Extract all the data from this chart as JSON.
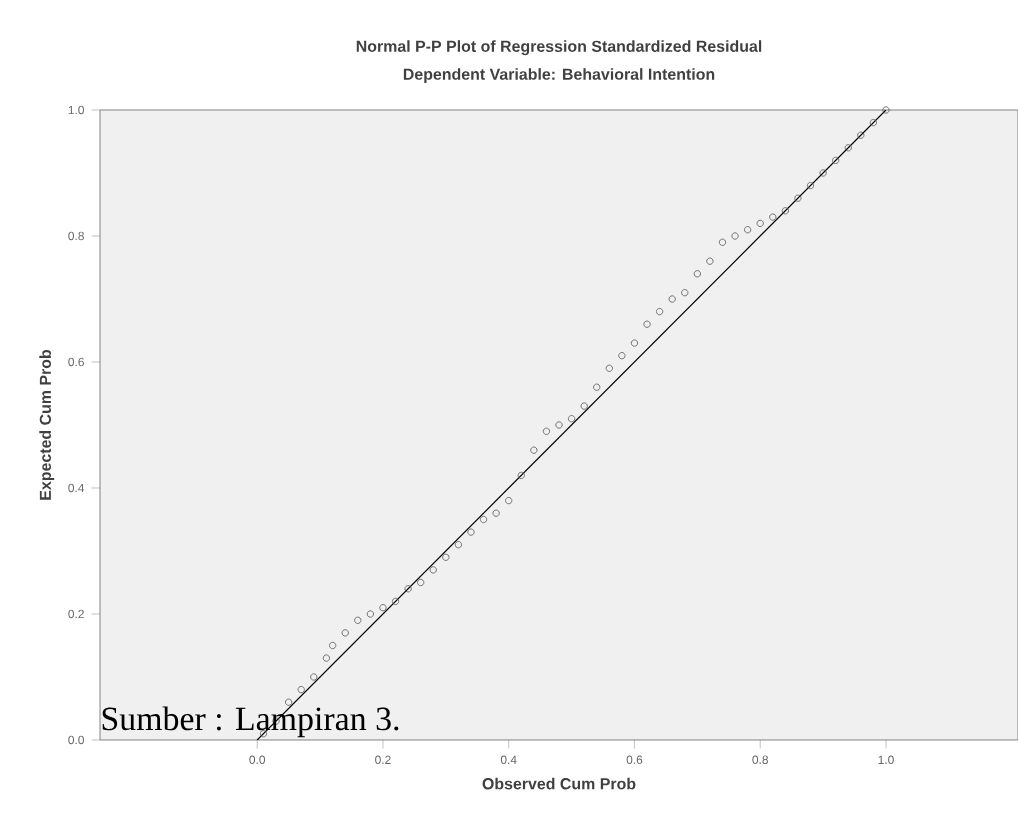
{
  "chart_data": {
    "type": "scatter",
    "title": "Normal P-P Plot of Regression Standardized Residual",
    "subtitle": "Dependent Variable: Behavioral Intention",
    "xlabel": "Observed Cum Prob",
    "ylabel": "Expected Cum Prob",
    "xlim": [
      -0.25,
      1.21
    ],
    "ylim": [
      0,
      1.0
    ],
    "xticks": [
      {
        "value": 0,
        "label": "0.0"
      },
      {
        "value": 0.2,
        "label": "0.2"
      },
      {
        "value": 0.4,
        "label": "0.4"
      },
      {
        "value": 0.6,
        "label": "0.6"
      },
      {
        "value": 0.8,
        "label": "0.8"
      },
      {
        "value": 1.0,
        "label": "1.0"
      }
    ],
    "yticks": [
      {
        "value": 0,
        "label": "0.0"
      },
      {
        "value": 0.2,
        "label": "0.2"
      },
      {
        "value": 0.4,
        "label": "0.4"
      },
      {
        "value": 0.6,
        "label": "0.6"
      },
      {
        "value": 0.8,
        "label": "0.8"
      },
      {
        "value": 1.0,
        "label": "1.0"
      }
    ],
    "series": [
      {
        "marker": "circle",
        "color": "#555555",
        "x": [
          0.01,
          0.03,
          0.05,
          0.07,
          0.09,
          0.11,
          0.12,
          0.14,
          0.16,
          0.18,
          0.2,
          0.22,
          0.24,
          0.26,
          0.28,
          0.3,
          0.32,
          0.34,
          0.36,
          0.38,
          0.4,
          0.42,
          0.44,
          0.46,
          0.48,
          0.5,
          0.52,
          0.54,
          0.56,
          0.58,
          0.6,
          0.62,
          0.64,
          0.66,
          0.68,
          0.7,
          0.72,
          0.74,
          0.76,
          0.78,
          0.8,
          0.82,
          0.84,
          0.86,
          0.88,
          0.9,
          0.92,
          0.94,
          0.96,
          0.98,
          1.0
        ],
        "values": [
          0.01,
          0.03,
          0.06,
          0.08,
          0.1,
          0.13,
          0.15,
          0.17,
          0.19,
          0.2,
          0.21,
          0.22,
          0.24,
          0.25,
          0.27,
          0.29,
          0.31,
          0.33,
          0.35,
          0.36,
          0.38,
          0.42,
          0.46,
          0.49,
          0.5,
          0.51,
          0.53,
          0.56,
          0.59,
          0.61,
          0.63,
          0.66,
          0.68,
          0.7,
          0.71,
          0.74,
          0.76,
          0.79,
          0.8,
          0.81,
          0.82,
          0.83,
          0.84,
          0.86,
          0.88,
          0.9,
          0.92,
          0.94,
          0.96,
          0.98,
          1.0
        ]
      },
      {
        "type": "line",
        "line_style": "solid",
        "color": "#000000",
        "x": [
          0,
          1
        ],
        "values": [
          0,
          1
        ]
      }
    ],
    "annotations": [
      "Sumber : Lampiran 3."
    ]
  }
}
